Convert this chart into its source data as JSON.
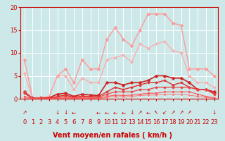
{
  "xlabel": "Vent moyen/en rafales ( km/h )",
  "xlim": [
    -0.5,
    23.5
  ],
  "ylim": [
    0,
    20
  ],
  "xticks": [
    0,
    1,
    2,
    3,
    4,
    5,
    6,
    7,
    8,
    9,
    10,
    11,
    12,
    13,
    14,
    15,
    16,
    17,
    18,
    19,
    20,
    21,
    22,
    23
  ],
  "yticks": [
    0,
    5,
    10,
    15,
    20
  ],
  "bg_color": "#cce8e8",
  "grid_color": "#ffffff",
  "series": [
    {
      "x": [
        0,
        1,
        2,
        3,
        4,
        5,
        6,
        7,
        8,
        9,
        10,
        11,
        12,
        13,
        14,
        15,
        16,
        17,
        18,
        19,
        20,
        21,
        22,
        23
      ],
      "y": [
        8.5,
        0.2,
        0.3,
        0.5,
        5.0,
        6.5,
        3.5,
        8.5,
        6.5,
        6.5,
        13.0,
        15.5,
        13.0,
        11.5,
        15.0,
        18.5,
        18.5,
        18.5,
        16.5,
        16.0,
        6.5,
        6.5,
        6.5,
        5.0
      ],
      "color": "#ff9999",
      "marker": "D",
      "markersize": 2.5,
      "linewidth": 1.0
    },
    {
      "x": [
        0,
        1,
        2,
        3,
        4,
        5,
        6,
        7,
        8,
        9,
        10,
        11,
        12,
        13,
        14,
        15,
        16,
        17,
        18,
        19,
        20,
        21,
        22,
        23
      ],
      "y": [
        5.5,
        0.1,
        0.2,
        0.4,
        5.0,
        5.0,
        2.0,
        4.5,
        3.5,
        3.5,
        8.5,
        9.0,
        9.5,
        8.0,
        12.0,
        11.0,
        12.0,
        12.5,
        10.5,
        10.0,
        5.0,
        3.5,
        3.5,
        2.5
      ],
      "color": "#ffaaaa",
      "marker": "D",
      "markersize": 2.0,
      "linewidth": 0.9
    },
    {
      "x": [
        0,
        1,
        2,
        3,
        4,
        5,
        6,
        7,
        8,
        9,
        10,
        11,
        12,
        13,
        14,
        15,
        16,
        17,
        18,
        19,
        20,
        21,
        22,
        23
      ],
      "y": [
        1.5,
        0.1,
        0.1,
        0.2,
        1.0,
        1.2,
        0.5,
        1.0,
        0.8,
        0.7,
        3.5,
        3.5,
        3.0,
        3.5,
        3.5,
        4.0,
        5.0,
        5.0,
        4.5,
        4.5,
        3.5,
        2.0,
        2.0,
        1.5
      ],
      "color": "#cc2222",
      "marker": "D",
      "markersize": 2.5,
      "linewidth": 1.2
    },
    {
      "x": [
        0,
        1,
        2,
        3,
        4,
        5,
        6,
        7,
        8,
        9,
        10,
        11,
        12,
        13,
        14,
        15,
        16,
        17,
        18,
        19,
        20,
        21,
        22,
        23
      ],
      "y": [
        1.2,
        0.05,
        0.05,
        0.1,
        0.5,
        0.8,
        0.3,
        0.6,
        0.5,
        0.5,
        1.5,
        2.5,
        2.0,
        2.5,
        3.0,
        3.5,
        3.5,
        4.0,
        3.0,
        3.5,
        2.5,
        2.0,
        2.0,
        1.2
      ],
      "color": "#dd3333",
      "marker": "D",
      "markersize": 2.0,
      "linewidth": 1.0
    },
    {
      "x": [
        0,
        1,
        2,
        3,
        4,
        5,
        6,
        7,
        8,
        9,
        10,
        11,
        12,
        13,
        14,
        15,
        16,
        17,
        18,
        19,
        20,
        21,
        22,
        23
      ],
      "y": [
        1.5,
        0.05,
        0.05,
        0.05,
        0.3,
        0.5,
        0.2,
        0.4,
        0.3,
        0.3,
        1.0,
        1.5,
        1.5,
        1.5,
        2.0,
        2.0,
        2.5,
        2.5,
        2.5,
        2.5,
        2.5,
        2.0,
        2.0,
        1.0
      ],
      "color": "#ee4444",
      "marker": "D",
      "markersize": 2.0,
      "linewidth": 0.9
    },
    {
      "x": [
        0,
        1,
        2,
        3,
        4,
        5,
        6,
        7,
        8,
        9,
        10,
        11,
        12,
        13,
        14,
        15,
        16,
        17,
        18,
        19,
        20,
        21,
        22,
        23
      ],
      "y": [
        0.5,
        0.0,
        0.0,
        0.0,
        0.1,
        0.2,
        0.1,
        0.2,
        0.1,
        0.1,
        0.5,
        0.8,
        0.7,
        0.8,
        1.0,
        1.2,
        1.2,
        1.5,
        1.5,
        1.5,
        1.5,
        1.0,
        0.5,
        0.2
      ],
      "color": "#ff5555",
      "marker": "D",
      "markersize": 1.8,
      "linewidth": 0.8
    },
    {
      "x": [
        0,
        1,
        2,
        3,
        4,
        5,
        6,
        7,
        8,
        9,
        10,
        11,
        12,
        13,
        14,
        15,
        16,
        17,
        18,
        19,
        20,
        21,
        22,
        23
      ],
      "y": [
        0.2,
        0.0,
        0.0,
        0.0,
        0.05,
        0.1,
        0.05,
        0.1,
        0.1,
        0.05,
        0.3,
        0.5,
        0.4,
        0.5,
        0.7,
        0.8,
        0.8,
        1.0,
        1.0,
        1.0,
        0.8,
        0.5,
        0.3,
        0.1
      ],
      "color": "#ff7777",
      "marker": "D",
      "markersize": 1.5,
      "linewidth": 0.7
    }
  ],
  "wind_dirs": [
    "↗",
    "↓",
    "↓",
    "←",
    "←",
    "←",
    "←",
    "←",
    "↓",
    "↗",
    "←",
    "↖",
    "↙",
    "↗",
    "↗",
    "↗",
    "↓"
  ],
  "wind_dir_x": [
    0,
    4,
    5,
    6,
    9,
    10,
    11,
    12,
    13,
    14,
    15,
    16,
    17,
    18,
    19,
    20,
    23
  ],
  "axis_color": "#cc0000",
  "tick_color": "#cc0000",
  "label_color": "#cc0000",
  "xlabel_fontsize": 7,
  "tick_fontsize": 6
}
